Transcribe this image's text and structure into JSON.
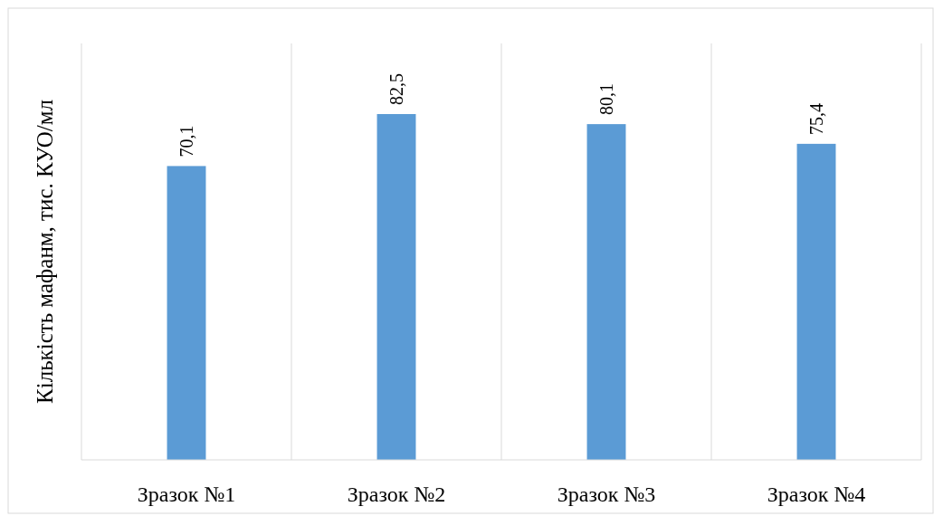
{
  "chart_data": {
    "type": "bar",
    "ylabel": "Кількість мафанм, тис. КУО/мл",
    "categories": [
      "Зразок №1",
      "Зразок №2",
      "Зразок №3",
      "Зразок №4"
    ],
    "values": [
      70.1,
      82.5,
      80.1,
      75.4
    ],
    "value_labels": [
      "70,1",
      "82,5",
      "80,1",
      "75,4"
    ],
    "color": "#5b9bd5",
    "grid": "x",
    "tick_labels": "x"
  }
}
